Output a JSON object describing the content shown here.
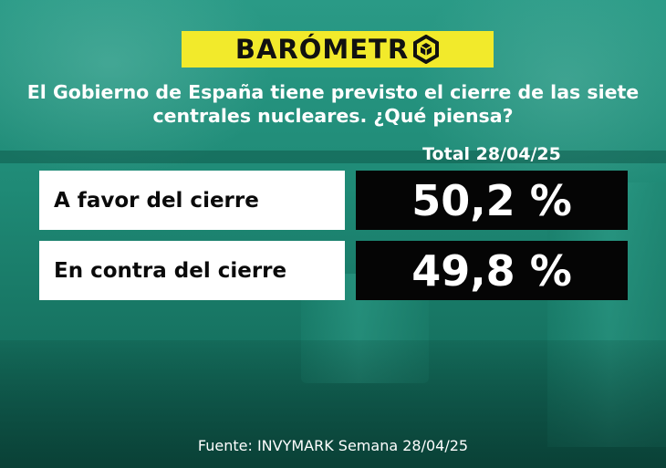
{
  "header": {
    "logo_text": "BARÓMETR",
    "logo_icon": "hexagon-cube-icon",
    "logo_color": "#f2ea2b"
  },
  "question": {
    "line1": "El Gobierno de España tiene previsto el cierre de las siete",
    "line2": "centrales nucleares. ¿Qué piensa?"
  },
  "chart_data": {
    "type": "table",
    "column_header": "Total 28/04/25",
    "categories": [
      "A favor del cierre",
      "En contra del cierre"
    ],
    "values": [
      50.2,
      49.8
    ],
    "value_labels": [
      "50,2 %",
      "49,8 %"
    ]
  },
  "source": "Fuente: INVYMARK Semana 28/04/25"
}
